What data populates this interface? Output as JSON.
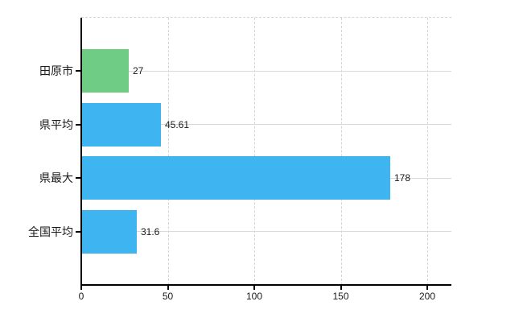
{
  "chart_data": {
    "type": "bar",
    "orientation": "horizontal",
    "title": "",
    "xlabel": "",
    "ylabel": "",
    "categories": [
      "田原市",
      "県平均",
      "県最大",
      "全国平均"
    ],
    "values": [
      27,
      45.61,
      178,
      31.6
    ],
    "value_labels": [
      "27",
      "45.61",
      "178",
      "31.6"
    ],
    "bar_colors": [
      "#6ecc85",
      "#3eb5f1",
      "#3eb5f1",
      "#3eb5f1"
    ],
    "x_ticks": [
      0,
      50,
      100,
      150,
      200
    ],
    "x_tick_labels": [
      "0",
      "50",
      "100",
      "150",
      "200"
    ],
    "xlim": [
      0,
      200
    ],
    "grid": true,
    "legend": false
  },
  "style": {
    "background_color": "#ffffff",
    "axis_color": "#000000",
    "h_gridline_color": "#d9d9d9",
    "v_gridline_color": "#d4d4d4",
    "text_color": "#1a1a1a",
    "bar_blue": "#3eb5f1",
    "bar_green": "#6ecc85"
  }
}
